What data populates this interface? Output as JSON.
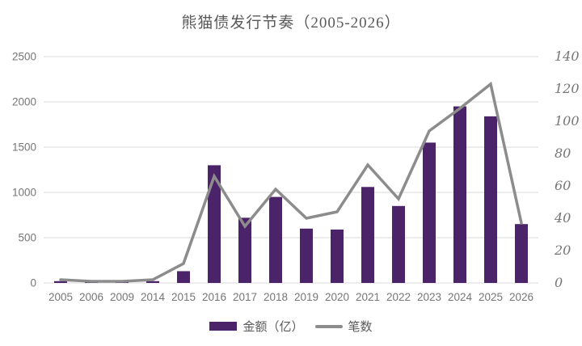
{
  "title": "熊猫债发行节奏（2005-2026）",
  "legend": {
    "bar_label": "金额（亿）",
    "line_label": "笔数"
  },
  "colors": {
    "bar": "#4B2369",
    "line": "#8C8C8C",
    "grid": "#D9D9D9",
    "axis_text": "#767676",
    "title_text": "#595959"
  },
  "chart_data": {
    "type": "bar",
    "subtype": "bar-line-combo",
    "title": "熊猫债发行节奏（2005-2026）",
    "categories": [
      "2005",
      "2006",
      "2009",
      "2014",
      "2015",
      "2016",
      "2017",
      "2018",
      "2019",
      "2020",
      "2021",
      "2022",
      "2023",
      "2024",
      "2025",
      "2026"
    ],
    "series": [
      {
        "name": "金额（亿）",
        "type": "bar",
        "axis": "left",
        "values": [
          20,
          10,
          10,
          20,
          130,
          1300,
          720,
          950,
          600,
          590,
          1060,
          850,
          1550,
          1950,
          1840,
          650
        ]
      },
      {
        "name": "笔数",
        "type": "line",
        "axis": "right",
        "values": [
          2,
          1,
          1,
          2,
          12,
          66,
          35,
          58,
          40,
          44,
          73,
          52,
          94,
          108,
          123,
          37
        ]
      }
    ],
    "left_axis": {
      "min": 0,
      "max": 2500,
      "step": 500,
      "ticks": [
        0,
        500,
        1000,
        1500,
        2000,
        2500
      ]
    },
    "right_axis": {
      "min": 0,
      "max": 140,
      "step": 20,
      "ticks": [
        0,
        20,
        40,
        60,
        80,
        100,
        120,
        140
      ]
    },
    "grid": "horizontal",
    "legend_position": "bottom"
  }
}
